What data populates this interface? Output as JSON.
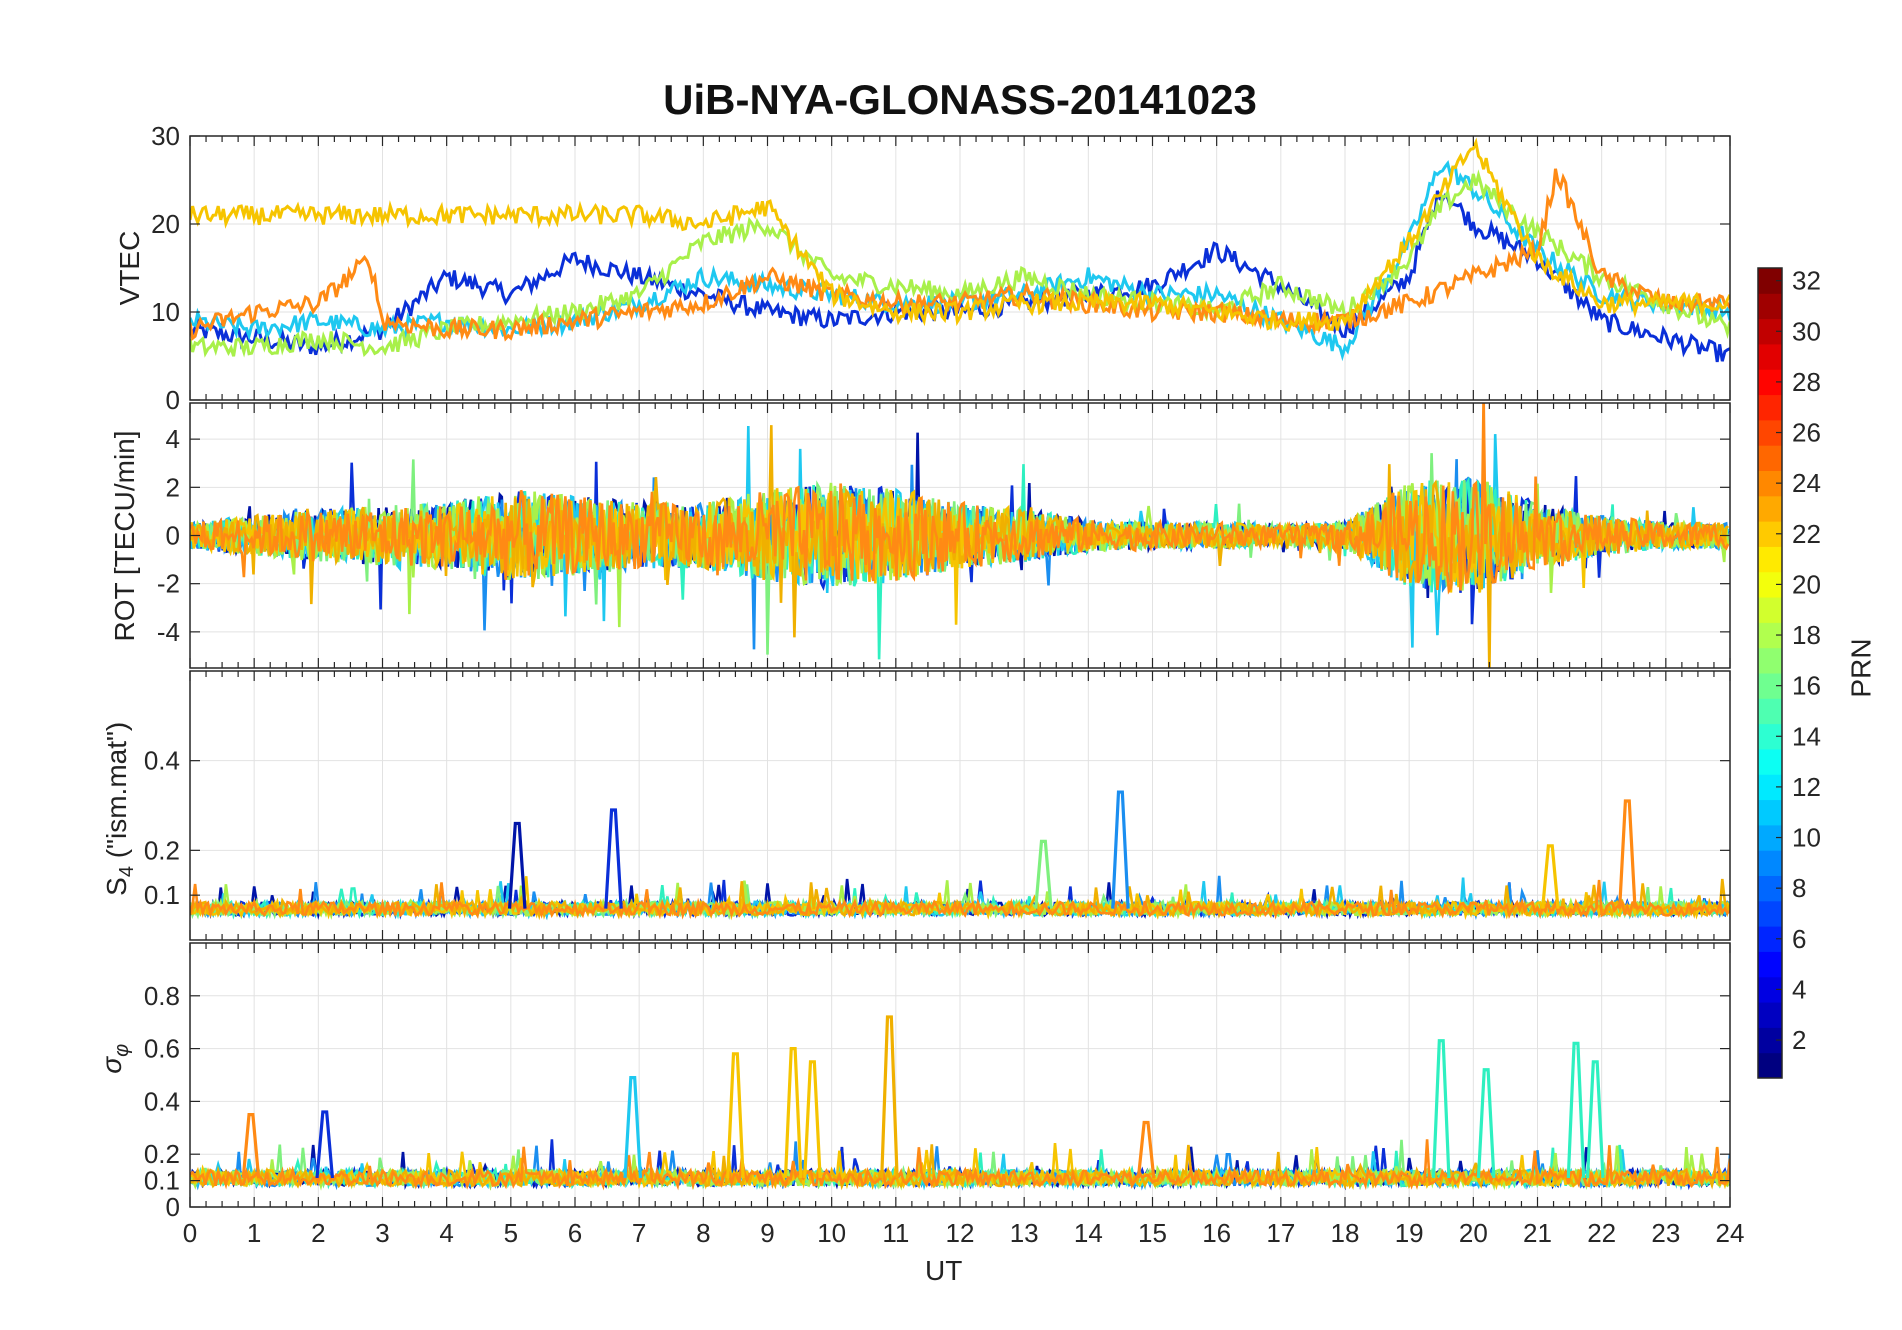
{
  "chart_data": [
    {
      "panel": "VTEC",
      "type": "line",
      "title": "UiB-NYA-GLONASS-20141023",
      "ylabel": "VTEC",
      "ylim": [
        0,
        30
      ],
      "yticks": [
        0,
        10,
        20,
        30
      ],
      "xlim": [
        0,
        24
      ],
      "grid": true,
      "series_summary": [
        {
          "prn_color": "#0a2fd8",
          "x": [
            0,
            1,
            2,
            3,
            4,
            5,
            6,
            7,
            8,
            9,
            10,
            11,
            12,
            13,
            14,
            15,
            16,
            17,
            18,
            19,
            19.5,
            20,
            21,
            22,
            23,
            24
          ],
          "y": [
            8,
            7,
            6,
            8,
            14,
            12,
            16,
            14,
            12,
            10,
            9,
            10,
            10,
            11,
            12,
            13,
            17,
            13,
            8,
            14,
            24,
            20,
            16,
            9,
            7,
            5
          ]
        },
        {
          "prn_color": "#1ec8f0",
          "x": [
            0,
            1,
            2,
            3,
            4,
            5,
            6,
            7,
            8,
            9,
            10,
            11,
            12,
            13,
            14,
            15,
            16,
            17,
            18,
            19,
            19.5,
            20,
            21,
            22,
            23,
            24
          ],
          "y": [
            9,
            8,
            9,
            8,
            9,
            8,
            9,
            11,
            14,
            13,
            12,
            11,
            11,
            12,
            14,
            12,
            12,
            9,
            6,
            18,
            27,
            24,
            17,
            12,
            11,
            10
          ]
        },
        {
          "prn_color": "#a8f04a",
          "x": [
            0,
            1,
            2,
            3,
            4,
            5,
            6,
            7,
            8,
            9,
            10,
            11,
            12,
            13,
            14,
            15,
            16,
            17,
            18,
            19,
            19.5,
            20,
            21,
            22,
            23,
            24
          ],
          "y": [
            6,
            6,
            7,
            6,
            8,
            9,
            10,
            12,
            18,
            20,
            14,
            13,
            12,
            14,
            12,
            11,
            10,
            13,
            10,
            16,
            22,
            25,
            19,
            14,
            11,
            8
          ]
        },
        {
          "prn_color": "#ff8a14",
          "x": [
            0,
            1,
            2,
            2.8,
            3,
            4,
            5,
            6,
            7,
            8,
            9,
            10,
            11,
            12,
            13,
            14,
            15,
            16,
            17,
            18,
            19,
            20,
            21,
            21.3,
            22,
            23,
            24
          ],
          "y": [
            8,
            10,
            11,
            16,
            9,
            8,
            8,
            9,
            10,
            11,
            14,
            12,
            11,
            11,
            12,
            11,
            10,
            10,
            9,
            9,
            11,
            14,
            17,
            26,
            14,
            11,
            11
          ]
        },
        {
          "prn_color": "#f6c400",
          "x": [
            7,
            8,
            9,
            10,
            11,
            12,
            13,
            14,
            15,
            16,
            17,
            18,
            19,
            20,
            21,
            22
          ],
          "y": [
            21,
            20,
            22,
            12,
            10,
            10,
            11,
            11,
            11,
            10,
            9,
            9,
            18,
            29,
            16,
            11
          ]
        }
      ]
    },
    {
      "panel": "ROT",
      "type": "line",
      "ylabel": "ROT [TECU/min]",
      "ylim": [
        -5.5,
        5.5
      ],
      "yticks": [
        -4,
        -2,
        0,
        2,
        4
      ],
      "xlim": [
        0,
        24
      ],
      "grid": true,
      "burst_profile": {
        "x": [
          0,
          2,
          4,
          5,
          6,
          7,
          8,
          9,
          10,
          11,
          12,
          13,
          14,
          15,
          16,
          17,
          18,
          19,
          20,
          21,
          22,
          23,
          24
        ],
        "amplitude": [
          1,
          2,
          2.5,
          3.5,
          3,
          2.5,
          2.5,
          3.5,
          4,
          3.5,
          2.5,
          2,
          1.2,
          1,
          1,
          0.8,
          1,
          4,
          4.5,
          2.5,
          1.5,
          1,
          1
        ]
      }
    },
    {
      "panel": "S4",
      "type": "line",
      "ylabel": "S",
      "ylabel_sub": "4",
      "ylabel_tail": " (\"ism.mat\")",
      "ylim": [
        0,
        0.6
      ],
      "yticks": [
        0.1,
        0.2,
        0.4
      ],
      "xlim": [
        0,
        24
      ],
      "grid": true,
      "peaks": [
        {
          "x": 5.1,
          "y": 0.26,
          "prn_color": "#0014a8"
        },
        {
          "x": 6.6,
          "y": 0.29,
          "prn_color": "#0a2fd8"
        },
        {
          "x": 14.5,
          "y": 0.33,
          "prn_color": "#1a8ef0"
        },
        {
          "x": 13.3,
          "y": 0.22,
          "prn_color": "#7ef07e"
        },
        {
          "x": 22.4,
          "y": 0.31,
          "prn_color": "#ff8a14"
        },
        {
          "x": 21.2,
          "y": 0.21,
          "prn_color": "#f6c400"
        }
      ]
    },
    {
      "panel": "sigma_phi",
      "type": "line",
      "ylabel": "σ",
      "ylabel_sub": "φ",
      "ylim": [
        0,
        1
      ],
      "yticks": [
        0,
        0.1,
        0.2,
        0.4,
        0.6,
        0.8
      ],
      "xlim": [
        0,
        24
      ],
      "xticks": [
        0,
        1,
        2,
        3,
        4,
        5,
        6,
        7,
        8,
        9,
        10,
        11,
        12,
        13,
        14,
        15,
        16,
        17,
        18,
        19,
        20,
        21,
        22,
        23,
        24
      ],
      "xlabel": "UT",
      "grid": true,
      "peaks": [
        {
          "x": 0.95,
          "y": 0.35,
          "prn_color": "#ff8a14"
        },
        {
          "x": 2.1,
          "y": 0.36,
          "prn_color": "#0a2fd8"
        },
        {
          "x": 6.9,
          "y": 0.49,
          "prn_color": "#1ec8f0"
        },
        {
          "x": 8.5,
          "y": 0.58,
          "prn_color": "#f6c400"
        },
        {
          "x": 9.4,
          "y": 0.6,
          "prn_color": "#f6c400"
        },
        {
          "x": 9.7,
          "y": 0.55,
          "prn_color": "#f6c400"
        },
        {
          "x": 10.9,
          "y": 0.72,
          "prn_color": "#f0b000"
        },
        {
          "x": 14.9,
          "y": 0.32,
          "prn_color": "#ff8a14"
        },
        {
          "x": 19.5,
          "y": 0.63,
          "prn_color": "#2ef0c0"
        },
        {
          "x": 20.2,
          "y": 0.52,
          "prn_color": "#2ef0c0"
        },
        {
          "x": 21.6,
          "y": 0.62,
          "prn_color": "#2ef0c0"
        },
        {
          "x": 21.9,
          "y": 0.55,
          "prn_color": "#2ef0c0"
        }
      ]
    }
  ],
  "colorbar": {
    "label": "PRN",
    "range": [
      1,
      32
    ],
    "ticks": [
      2,
      4,
      6,
      8,
      10,
      12,
      14,
      16,
      18,
      20,
      22,
      24,
      26,
      28,
      30,
      32
    ],
    "colormap": "jet"
  },
  "title": "UiB-NYA-GLONASS-20141023",
  "xlabel": "UT"
}
